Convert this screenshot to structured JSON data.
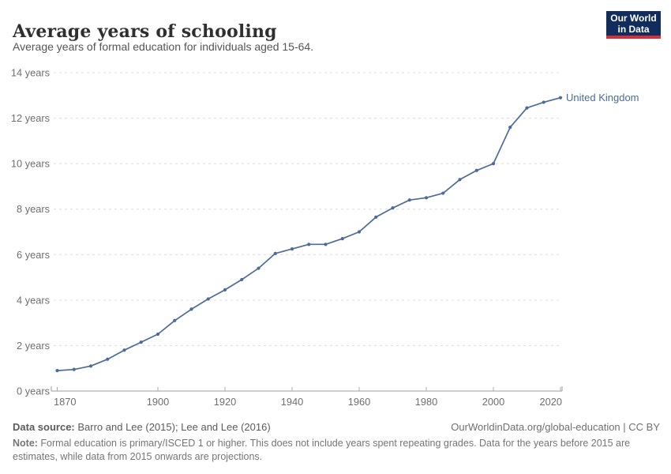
{
  "header": {
    "title": "Average years of schooling",
    "subtitle": "Average years of formal education for individuals aged 15-64.",
    "logo": {
      "line1": "Our World",
      "line2": "in Data",
      "bg": "#102d5e",
      "accent": "#d13239"
    }
  },
  "chart_data": {
    "type": "line",
    "title": "Average years of schooling",
    "subtitle": "Average years of formal education for individuals aged 15-64.",
    "xlabel": "",
    "ylabel": "years",
    "xlim": [
      1870,
      2020
    ],
    "ylim": [
      0,
      14
    ],
    "x_ticks": [
      1870,
      1900,
      1920,
      1940,
      1960,
      1980,
      2000,
      2020
    ],
    "y_ticks": [
      0,
      2,
      4,
      6,
      8,
      10,
      12,
      14
    ],
    "y_tick_suffix": " years",
    "grid": "horizontal-dashed",
    "legend_position": "end-of-line-label",
    "x": [
      1870,
      1875,
      1880,
      1885,
      1890,
      1895,
      1900,
      1905,
      1910,
      1915,
      1920,
      1925,
      1930,
      1935,
      1940,
      1945,
      1950,
      1955,
      1960,
      1965,
      1970,
      1975,
      1980,
      1985,
      1990,
      1995,
      2000,
      2005,
      2010,
      2015,
      2020
    ],
    "series": [
      {
        "name": "United Kingdom",
        "color": "#4c6a9c",
        "values": [
          0.9,
          0.95,
          1.1,
          1.4,
          1.8,
          2.15,
          2.5,
          3.1,
          3.6,
          4.05,
          4.45,
          4.9,
          5.4,
          6.05,
          6.25,
          6.45,
          6.45,
          6.7,
          7.0,
          7.65,
          8.05,
          8.4,
          8.5,
          8.7,
          9.3,
          9.7,
          10.0,
          11.6,
          12.45,
          12.7,
          12.9
        ]
      }
    ]
  },
  "footer": {
    "datasource_label": "Data source:",
    "datasource_text": " Barro and Lee (2015); Lee and Lee (2016)",
    "link": "OurWorldinData.org/global-education | CC BY",
    "note_label": "Note:",
    "note_text": " Formal education is primary/ISCED 1 or higher. This does not include years spent repeating grades. Data for the years before 2015 are estimates, while data from 2015 onwards are projections."
  }
}
